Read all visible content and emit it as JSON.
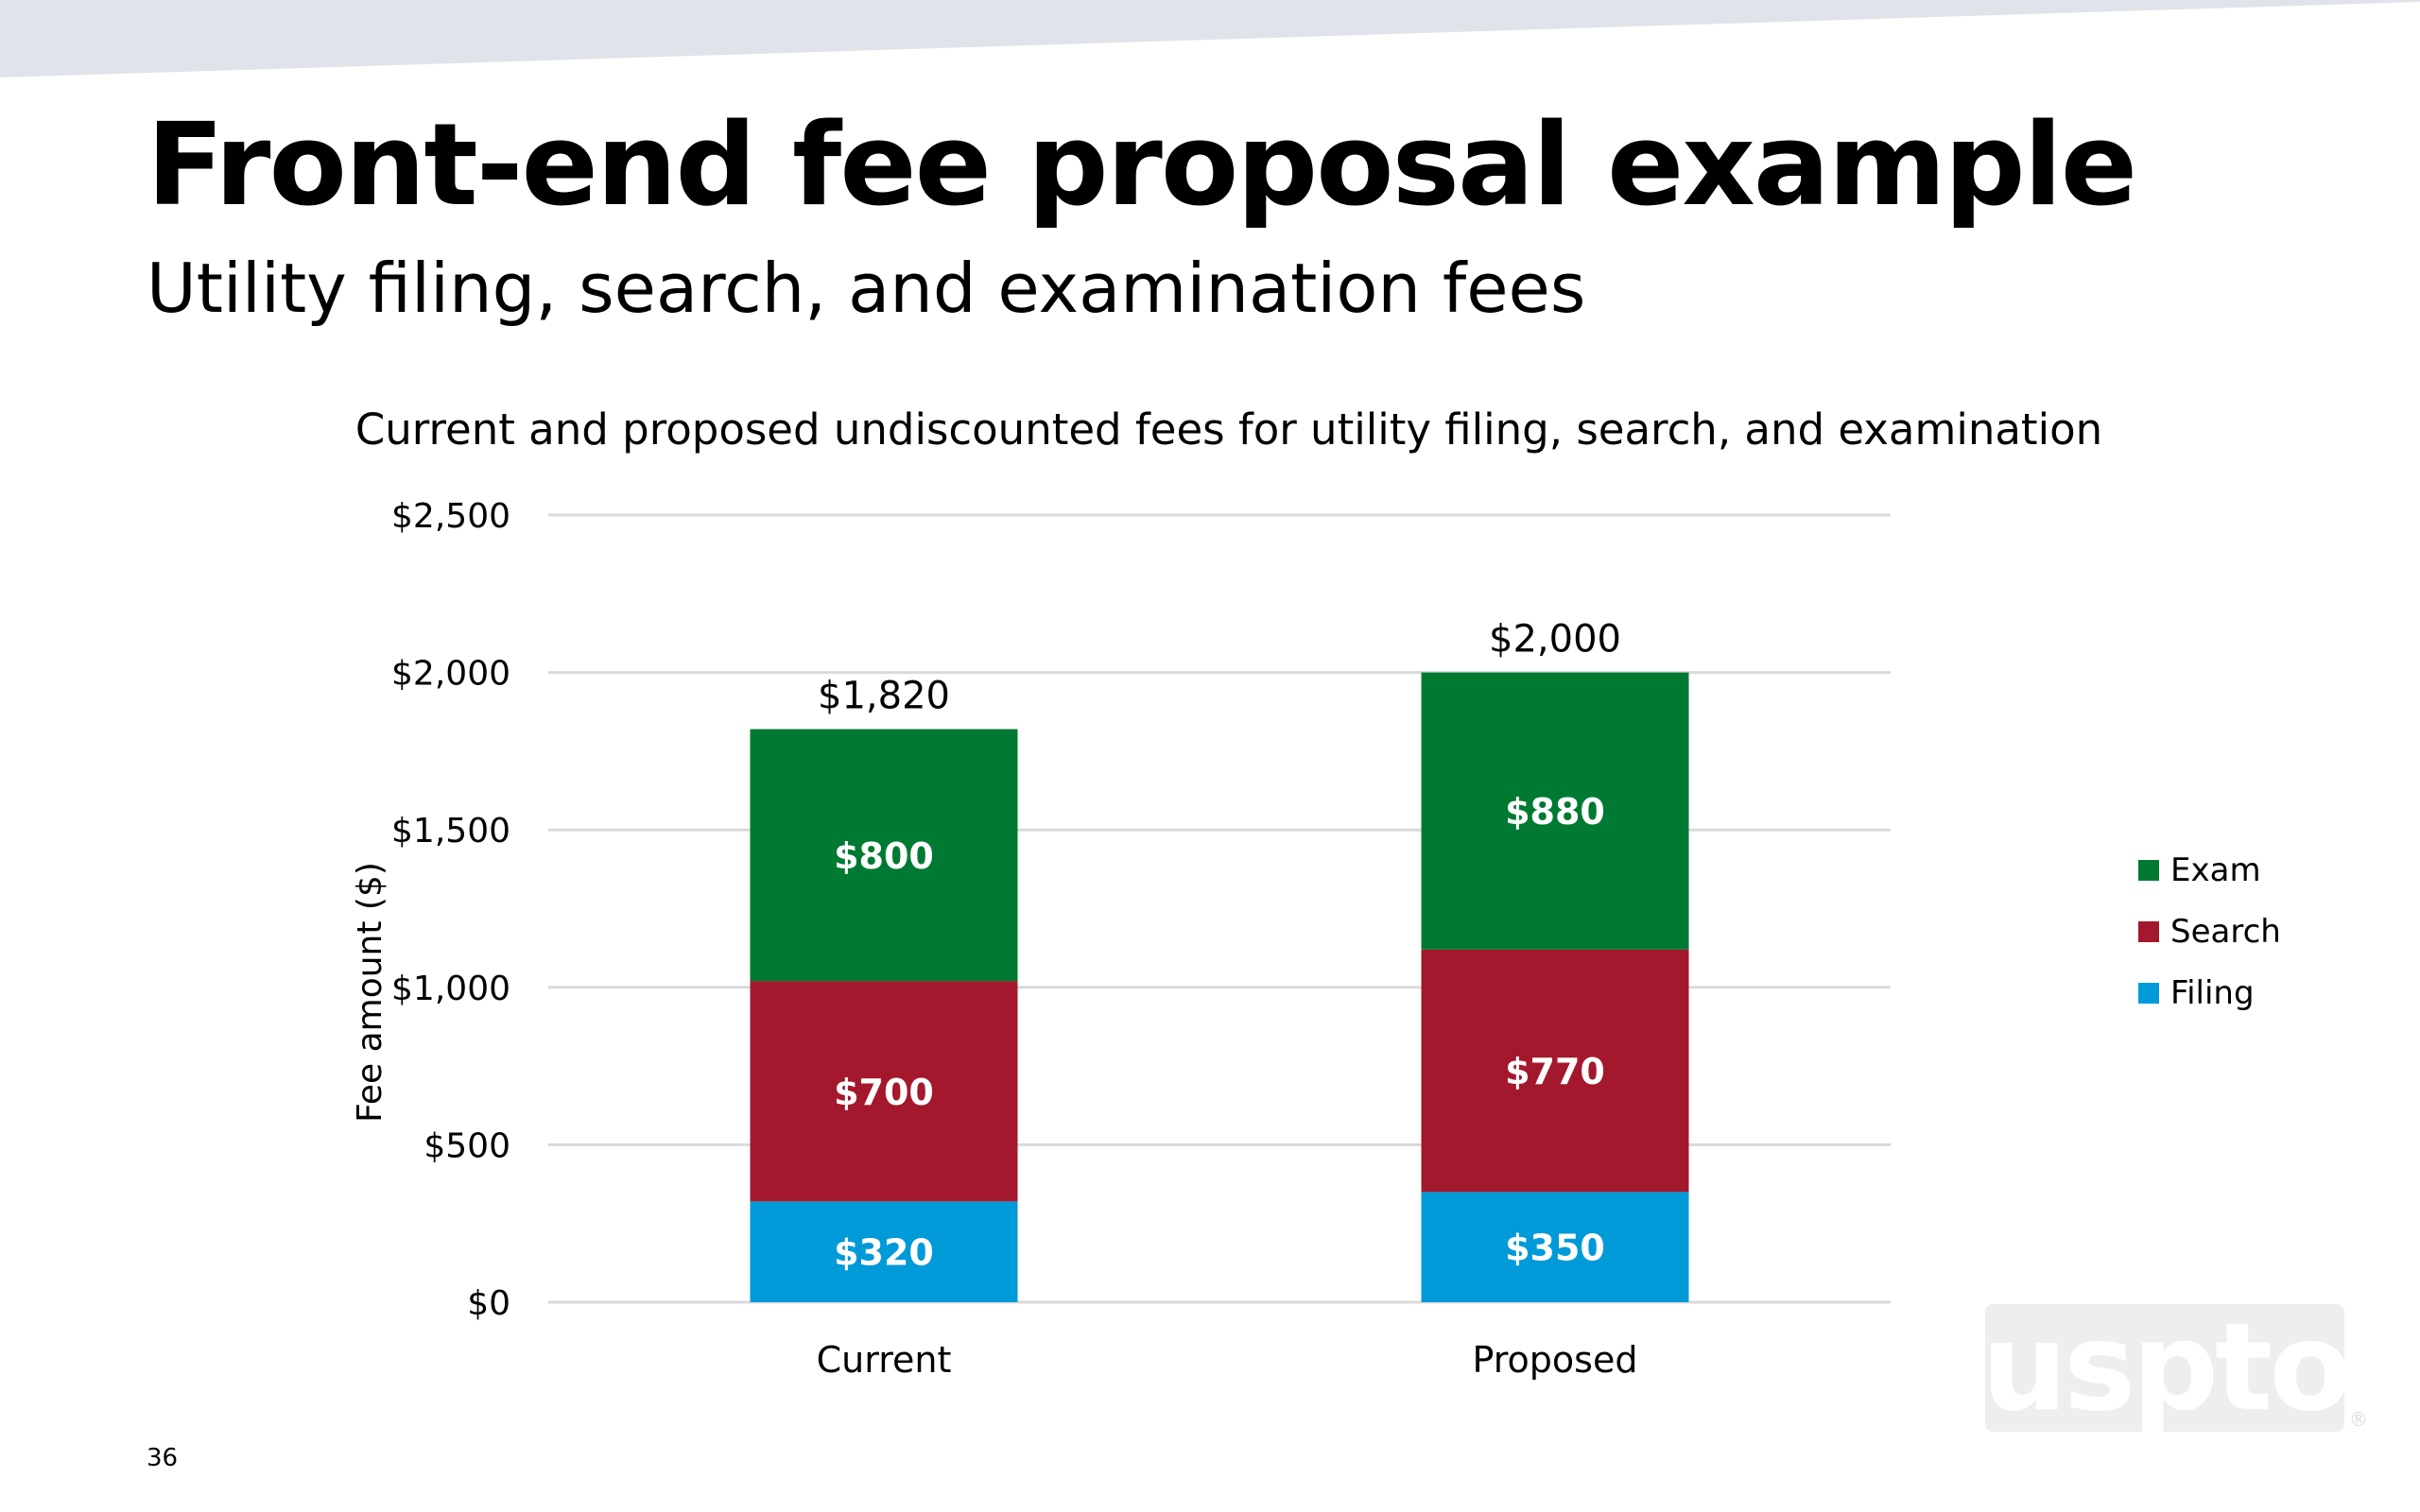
{
  "slide": {
    "title": "Front-end fee proposal example",
    "subtitle": "Utility filing, search, and examination fees",
    "page_number": "36",
    "logo_text": "uspto",
    "logo_mark": "®",
    "band_color": "#e0e4ea"
  },
  "chart_data": {
    "type": "bar",
    "stacked": true,
    "title": "Current and proposed undiscounted fees for utility filing, search, and examination",
    "xlabel": "",
    "ylabel": "Fee amount ($)",
    "ylim": [
      0,
      2500
    ],
    "yticks": [
      0,
      500,
      1000,
      1500,
      2000,
      2500
    ],
    "ytick_labels": [
      "$0",
      "$500",
      "$1,000",
      "$1,500",
      "$2,000",
      "$2,500"
    ],
    "grid": true,
    "legend_position": "right",
    "categories": [
      "Current",
      "Proposed"
    ],
    "series": [
      {
        "name": "Filing",
        "color": "#009ad9",
        "values": [
          320,
          350
        ],
        "labels": [
          "$320",
          "$350"
        ]
      },
      {
        "name": "Search",
        "color": "#a3182d",
        "values": [
          700,
          770
        ],
        "labels": [
          "$700",
          "$770"
        ]
      },
      {
        "name": "Exam",
        "color": "#007a33",
        "values": [
          800,
          880
        ],
        "labels": [
          "$800",
          "$880"
        ]
      }
    ],
    "totals": [
      1820,
      2000
    ],
    "total_labels": [
      "$1,820",
      "$2,000"
    ],
    "legend_order": [
      "Exam",
      "Search",
      "Filing"
    ]
  }
}
